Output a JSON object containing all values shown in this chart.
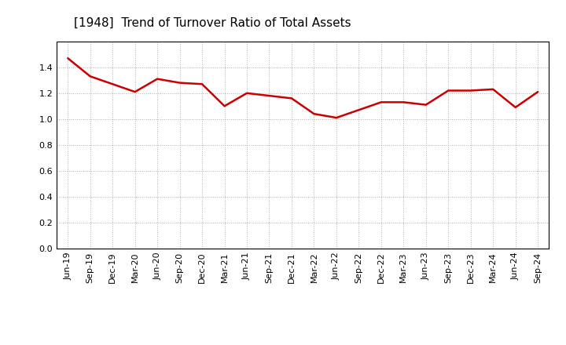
{
  "title": "[1948]  Trend of Turnover Ratio of Total Assets",
  "x_labels": [
    "Jun-19",
    "Sep-19",
    "Dec-19",
    "Mar-20",
    "Jun-20",
    "Sep-20",
    "Dec-20",
    "Mar-21",
    "Jun-21",
    "Sep-21",
    "Dec-21",
    "Mar-22",
    "Jun-22",
    "Sep-22",
    "Dec-22",
    "Mar-23",
    "Jun-23",
    "Sep-23",
    "Dec-23",
    "Mar-24",
    "Jun-24",
    "Sep-24"
  ],
  "values": [
    1.47,
    1.33,
    1.27,
    1.21,
    1.31,
    1.28,
    1.27,
    1.1,
    1.2,
    1.18,
    1.16,
    1.04,
    1.01,
    1.07,
    1.13,
    1.13,
    1.11,
    1.22,
    1.22,
    1.23,
    1.09,
    1.21
  ],
  "line_color": "#cc0000",
  "line_width": 1.8,
  "ylim": [
    0.0,
    1.6
  ],
  "yticks": [
    0.0,
    0.2,
    0.4,
    0.6,
    0.8,
    1.0,
    1.2,
    1.4
  ],
  "grid_color": "#999999",
  "grid_style": "dotted",
  "title_fontsize": 11,
  "tick_fontsize": 8,
  "background_color": "#ffffff"
}
